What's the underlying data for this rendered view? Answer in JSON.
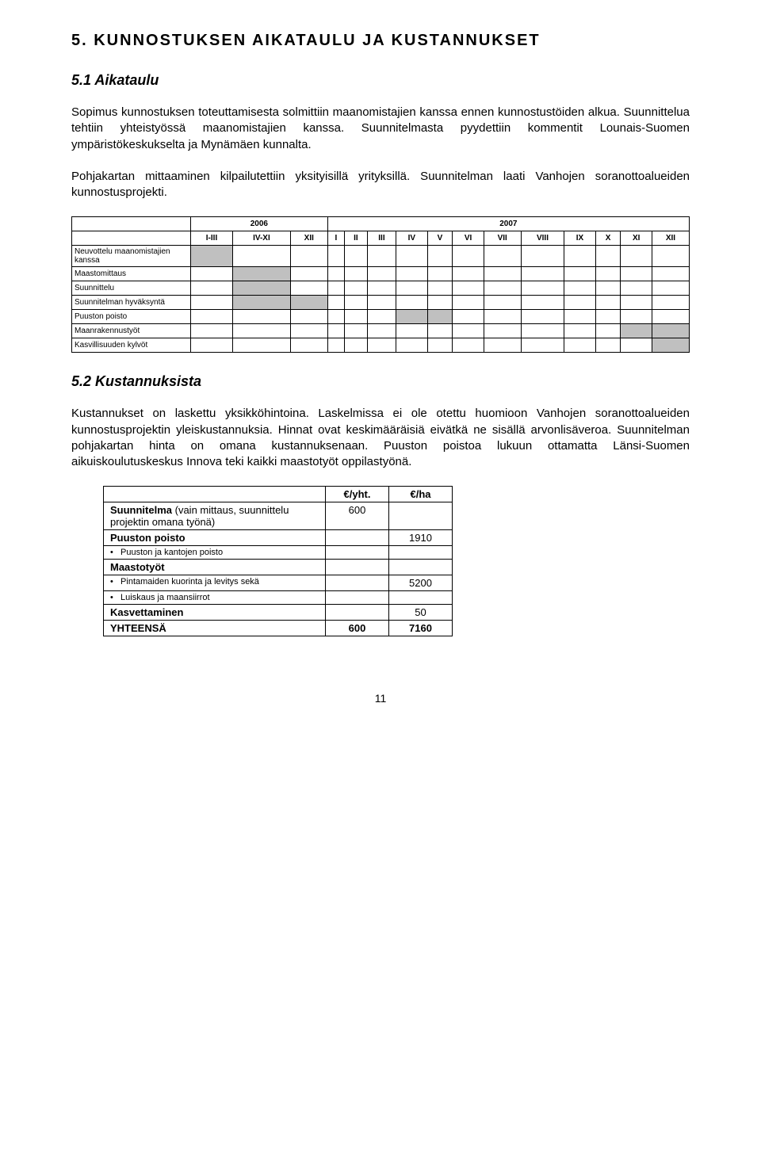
{
  "section": {
    "title": "5. KUNNOSTUKSEN AIKATAULU JA KUSTANNUKSET",
    "sub1": {
      "title": "5.1 Aikataulu",
      "para1": "Sopimus kunnostuksen toteuttamisesta solmittiin maanomistajien kanssa ennen kunnostustöiden alkua. Suunnittelua tehtiin yhteistyössä maanomistajien kanssa. Suunnitelmasta pyydettiin kommentit Lounais-Suomen ympäristökeskukselta ja Mynämäen kunnalta.",
      "para2": "Pohjakartan mittaaminen kilpailutettiin yksityisillä yrityksillä. Suunnitelman laati Vanhojen soranottoalueiden kunnostusprojekti."
    },
    "sub2": {
      "title": "5.2 Kustannuksista",
      "para": "Kustannukset on laskettu yksikköhintoina. Laskelmissa ei ole otettu huomioon Vanhojen soranottoalueiden kunnostusprojektin yleiskustannuksia. Hinnat ovat keskimääräisiä eivätkä ne sisällä arvonlisäveroa. Suunnitelman pohjakartan hinta on omana kustannuksenaan. Puuston poistoa lukuun ottamatta Länsi-Suomen aikuiskoulutuskeskus Innova teki kaikki maastotyöt oppilastyönä."
    }
  },
  "schedule": {
    "year_a": "2006",
    "year_b": "2007",
    "cols_a": [
      "I-III",
      "IV-XI",
      "XII"
    ],
    "cols_b": [
      "I",
      "II",
      "III",
      "IV",
      "V",
      "VI",
      "VII",
      "VIII",
      "IX",
      "X",
      "XI",
      "XII"
    ],
    "rows": [
      {
        "label": "Neuvottelu maanomistajien kanssa",
        "fill": [
          0
        ]
      },
      {
        "label": "Maastomittaus",
        "fill": [
          1
        ]
      },
      {
        "label": "Suunnittelu",
        "fill": [
          1
        ]
      },
      {
        "label": "Suunnitelman hyväksyntä",
        "fill": [
          1,
          2
        ]
      },
      {
        "label": "Puuston poisto",
        "fill": [
          6,
          7
        ]
      },
      {
        "label": "Maanrakennustyöt",
        "fill": [
          13,
          14
        ]
      },
      {
        "label": "Kasvillisuuden kylvöt",
        "fill": [
          14
        ]
      }
    ]
  },
  "costs": {
    "hdr_yht": "€/yht.",
    "hdr_ha": "€/ha",
    "rows": [
      {
        "label": "Suunnitelma (vain mittaus, suunnittelu projektin omana työnä)",
        "bold_first_word": true,
        "yht": "600",
        "ha": ""
      },
      {
        "label": "Puuston poisto",
        "bold": true,
        "yht": "",
        "ha": "1910"
      },
      {
        "label": "Puuston ja kantojen poisto",
        "bullet": true,
        "yht": "",
        "ha": ""
      },
      {
        "label": "Maastotyöt",
        "bold": true,
        "yht": "",
        "ha": ""
      },
      {
        "label": "Pintamaiden kuorinta ja levitys sekä",
        "bullet": true,
        "yht": "",
        "ha": "5200"
      },
      {
        "label": "Luiskaus ja maansiirrot",
        "bullet": true,
        "yht": "",
        "ha": ""
      }
    ],
    "footer": {
      "kas_label": "Kasvettaminen",
      "kas_val": "50",
      "yht_label": "YHTEENSÄ",
      "yht_yht": "600",
      "yht_ha": "7160"
    }
  },
  "page_num": "11",
  "colors": {
    "fill": "#c0c0c0",
    "border": "#000000",
    "bg": "#ffffff",
    "text": "#000000"
  }
}
